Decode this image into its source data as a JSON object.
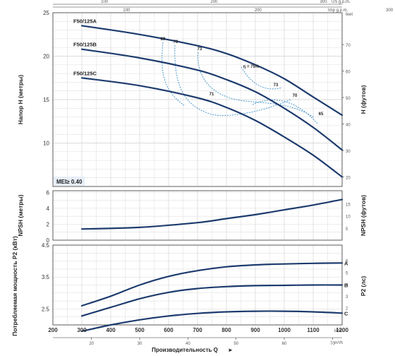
{
  "top_axes": {
    "us_gpm": {
      "label": "US g.p.m.",
      "ticks": [
        "100",
        "200",
        "300"
      ]
    },
    "imp_gpm": {
      "label": "Imp g.p.m.",
      "ticks": [
        "100",
        "200",
        "300"
      ]
    }
  },
  "head_chart": {
    "ylabel_left": "Напор H (метры)",
    "ylabel_right": "H (футов)",
    "right_unit": "feet",
    "left_ticks": [
      "25",
      "20",
      "15",
      "10"
    ],
    "right_ticks": [
      "70",
      "60",
      "50",
      "40",
      "30",
      "20"
    ],
    "mei": "MEI≥ 0.40",
    "efficiency_labels": [
      "69",
      "70",
      "73",
      "η = 75%",
      "73",
      "70",
      "65",
      "71"
    ]
  },
  "npsh_chart": {
    "ylabel_left": "NPSH (метры)",
    "ylabel_right": "NPSH (футов)",
    "left_ticks": [
      "6",
      "4",
      "2",
      "0"
    ],
    "right_ticks": [
      "15",
      "10",
      "5"
    ]
  },
  "power_chart": {
    "ylabel_left": "Потребляемая мощность P2 (кВт)",
    "ylabel_right": "P2 (лс)",
    "left_ticks": [
      "4.5",
      "3.5",
      "2.5"
    ],
    "right_ticks": [
      "6",
      "5",
      "4",
      "3",
      "2"
    ]
  },
  "bottom_axes": {
    "lmin_label": "l/min",
    "lmin_ticks": [
      "200",
      "300",
      "400",
      "500",
      "600",
      "700",
      "800",
      "900",
      "1000",
      "1100",
      "1200"
    ],
    "m3h_label": "m³/h",
    "m3h_ticks": [
      "20",
      "30",
      "40",
      "50",
      "60",
      "70"
    ],
    "xlabel": "Производительность Q",
    "arrow": "►"
  },
  "chart_data": [
    {
      "type": "line",
      "x_unit": "l/min",
      "xlim": [
        200,
        1200
      ],
      "ylabel": "Напор H (метры)",
      "ylim": [
        5,
        25
      ],
      "series": [
        {
          "name": "F50/125A",
          "x": [
            300,
            500,
            700,
            800,
            900,
            1000,
            1100,
            1200
          ],
          "values": [
            23.5,
            22.5,
            21.2,
            20.3,
            19.0,
            17.4,
            15.3,
            13.2
          ]
        },
        {
          "name": "F50/125B",
          "x": [
            300,
            500,
            700,
            800,
            900,
            1000,
            1100,
            1200
          ],
          "values": [
            20.8,
            19.8,
            18.4,
            17.3,
            15.9,
            14.0,
            11.8,
            9.2
          ]
        },
        {
          "name": "F50/125C",
          "x": [
            300,
            500,
            700,
            800,
            900,
            1000,
            1100,
            1200
          ],
          "values": [
            17.5,
            16.6,
            15.2,
            14.1,
            12.6,
            10.7,
            8.6,
            6.1
          ]
        }
      ],
      "grid": true
    },
    {
      "type": "line",
      "x_unit": "l/min",
      "xlim": [
        200,
        1200
      ],
      "ylabel": "NPSH (метры)",
      "ylim": [
        0,
        6
      ],
      "series": [
        {
          "name": "",
          "x": [
            300,
            500,
            700,
            800,
            900,
            1000,
            1100,
            1200
          ],
          "values": [
            1.4,
            1.6,
            2.2,
            2.7,
            3.2,
            3.8,
            4.4,
            5.1
          ]
        }
      ],
      "grid": true
    },
    {
      "type": "line",
      "x_unit": "l/min",
      "xlim": [
        200,
        1200
      ],
      "ylabel": "Потребляемая мощность P2 (кВт)",
      "ylim": [
        2,
        4.5
      ],
      "series": [
        {
          "name": "A",
          "x": [
            300,
            400,
            500,
            600,
            700,
            800,
            900,
            1000,
            1100,
            1200
          ],
          "values": [
            2.6,
            2.9,
            3.25,
            3.52,
            3.7,
            3.82,
            3.88,
            3.91,
            3.93,
            3.94
          ]
        },
        {
          "name": "B",
          "x": [
            300,
            400,
            500,
            600,
            700,
            800,
            900,
            1000,
            1100,
            1200
          ],
          "values": [
            2.28,
            2.55,
            2.82,
            3.02,
            3.14,
            3.2,
            3.23,
            3.24,
            3.25,
            3.25
          ]
        },
        {
          "name": "C",
          "x": [
            300,
            400,
            500,
            600,
            700,
            800,
            900,
            1000,
            1100,
            1200
          ],
          "values": [
            1.8,
            2.0,
            2.16,
            2.28,
            2.36,
            2.41,
            2.43,
            2.43,
            2.41,
            2.37
          ]
        }
      ],
      "grid": true
    }
  ],
  "colors": {
    "curve": "#1d3b6e",
    "efficiency": "#3a8fc8",
    "grid": "#cfcfcf"
  }
}
